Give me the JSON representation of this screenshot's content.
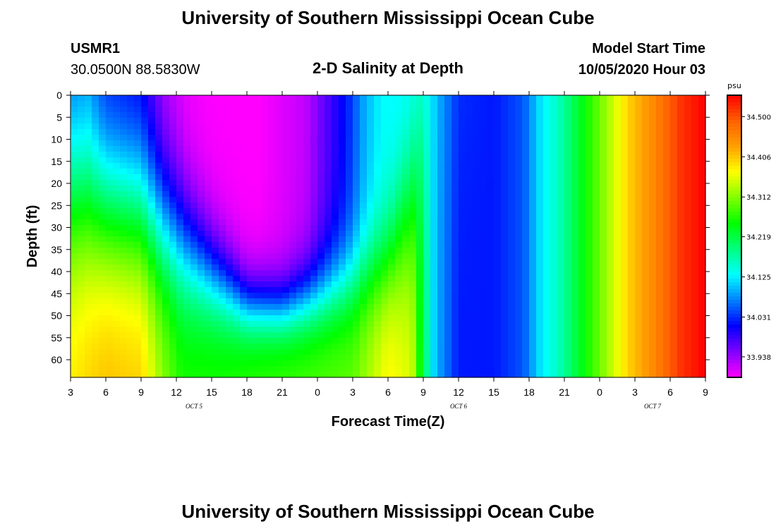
{
  "header": {
    "title_top": "University of Southern Mississippi Ocean Cube",
    "station": "USMR1",
    "coords": "30.0500N 88.5830W",
    "subtitle": "2-D Salinity at Depth",
    "model_label": "Model Start Time",
    "model_time": "10/05/2020 Hour 03"
  },
  "footer": {
    "title_bottom": "University of Southern Mississippi Ocean Cube"
  },
  "chart_data": {
    "type": "heatmap",
    "title": "2-D Salinity at Depth",
    "xlabel": "Forecast Time(Z)",
    "ylabel": "Depth (ft)",
    "colorbar_unit": "psu",
    "x_ticks": [
      "3",
      "6",
      "9",
      "12",
      "15",
      "18",
      "21",
      "0",
      "3",
      "6",
      "9",
      "12",
      "15",
      "18",
      "21",
      "0",
      "3",
      "6",
      "9"
    ],
    "x_hours_from_start": [
      0,
      3,
      6,
      9,
      12,
      15,
      18,
      21,
      24,
      27,
      30,
      33,
      36,
      39,
      42,
      45,
      48,
      51,
      54
    ],
    "date_labels": [
      {
        "label": "OCT 5",
        "hour": 10.5
      },
      {
        "label": "OCT 6",
        "hour": 33
      },
      {
        "label": "OCT 7",
        "hour": 49.5
      }
    ],
    "y_ticks": [
      "0",
      "5",
      "10",
      "15",
      "20",
      "25",
      "30",
      "35",
      "40",
      "45",
      "50",
      "55",
      "60"
    ],
    "y_tick_values": [
      0,
      5,
      10,
      15,
      20,
      25,
      30,
      35,
      40,
      45,
      50,
      55,
      60
    ],
    "ylim": [
      0,
      64
    ],
    "xlim": [
      0,
      54
    ],
    "colorbar_ticks": [
      "34.500",
      "34.406",
      "34.312",
      "34.219",
      "34.125",
      "34.031",
      "33.938"
    ],
    "colorbar_values": [
      34.5,
      34.406,
      34.312,
      34.219,
      34.125,
      34.031,
      33.938
    ],
    "value_range": [
      33.89,
      34.55
    ],
    "colors": [
      "#ff00ff",
      "#8000ff",
      "#0000ff",
      "#0080ff",
      "#00ffff",
      "#00ff80",
      "#00ff00",
      "#80ff00",
      "#ffff00",
      "#ffa000",
      "#ff6000",
      "#ff0000"
    ],
    "grid": false,
    "surface_profile": [
      [
        0,
        34.03
      ],
      [
        1.5,
        34.05
      ],
      [
        3,
        34.0
      ],
      [
        6,
        33.98
      ],
      [
        8,
        33.92
      ],
      [
        10,
        33.895
      ],
      [
        12,
        33.89
      ],
      [
        16,
        33.89
      ],
      [
        20,
        33.92
      ],
      [
        23.5,
        34.02
      ],
      [
        25,
        34.09
      ],
      [
        26.5,
        34.13
      ],
      [
        28.5,
        34.12
      ],
      [
        31,
        34.11
      ],
      [
        33,
        34.04
      ],
      [
        36,
        34.02
      ],
      [
        38.5,
        34.05
      ],
      [
        40,
        34.12
      ],
      [
        41.5,
        34.16
      ],
      [
        43,
        34.22
      ],
      [
        44.5,
        34.28
      ],
      [
        46,
        34.34
      ],
      [
        47.5,
        34.4
      ],
      [
        49.5,
        34.45
      ],
      [
        52,
        34.52
      ],
      [
        54,
        34.55
      ]
    ],
    "bottom_profile": [
      [
        0,
        34.39
      ],
      [
        3,
        34.42
      ],
      [
        6,
        34.41
      ],
      [
        8,
        34.32
      ],
      [
        9.5,
        34.27
      ],
      [
        13,
        34.27
      ],
      [
        18,
        34.28
      ],
      [
        24,
        34.3
      ],
      [
        27,
        34.38
      ],
      [
        29,
        34.36
      ],
      [
        30,
        34.22
      ],
      [
        31,
        34.1
      ],
      [
        33,
        34.02
      ],
      [
        36,
        34.02
      ],
      [
        38.5,
        34.05
      ],
      [
        40,
        34.12
      ],
      [
        41.5,
        34.16
      ],
      [
        43,
        34.22
      ],
      [
        44.5,
        34.28
      ],
      [
        46,
        34.34
      ],
      [
        47.5,
        34.4
      ],
      [
        49.5,
        34.45
      ],
      [
        52,
        34.52
      ],
      [
        54,
        34.55
      ]
    ],
    "interface_depth": [
      [
        0,
        22
      ],
      [
        3,
        25
      ],
      [
        6,
        26
      ],
      [
        9,
        33
      ],
      [
        12,
        41
      ],
      [
        15,
        48
      ],
      [
        18,
        49
      ],
      [
        21,
        46
      ],
      [
        24,
        42
      ],
      [
        27,
        38
      ],
      [
        29,
        25
      ],
      [
        30,
        10
      ],
      [
        31,
        0
      ],
      [
        54,
        0
      ]
    ]
  }
}
